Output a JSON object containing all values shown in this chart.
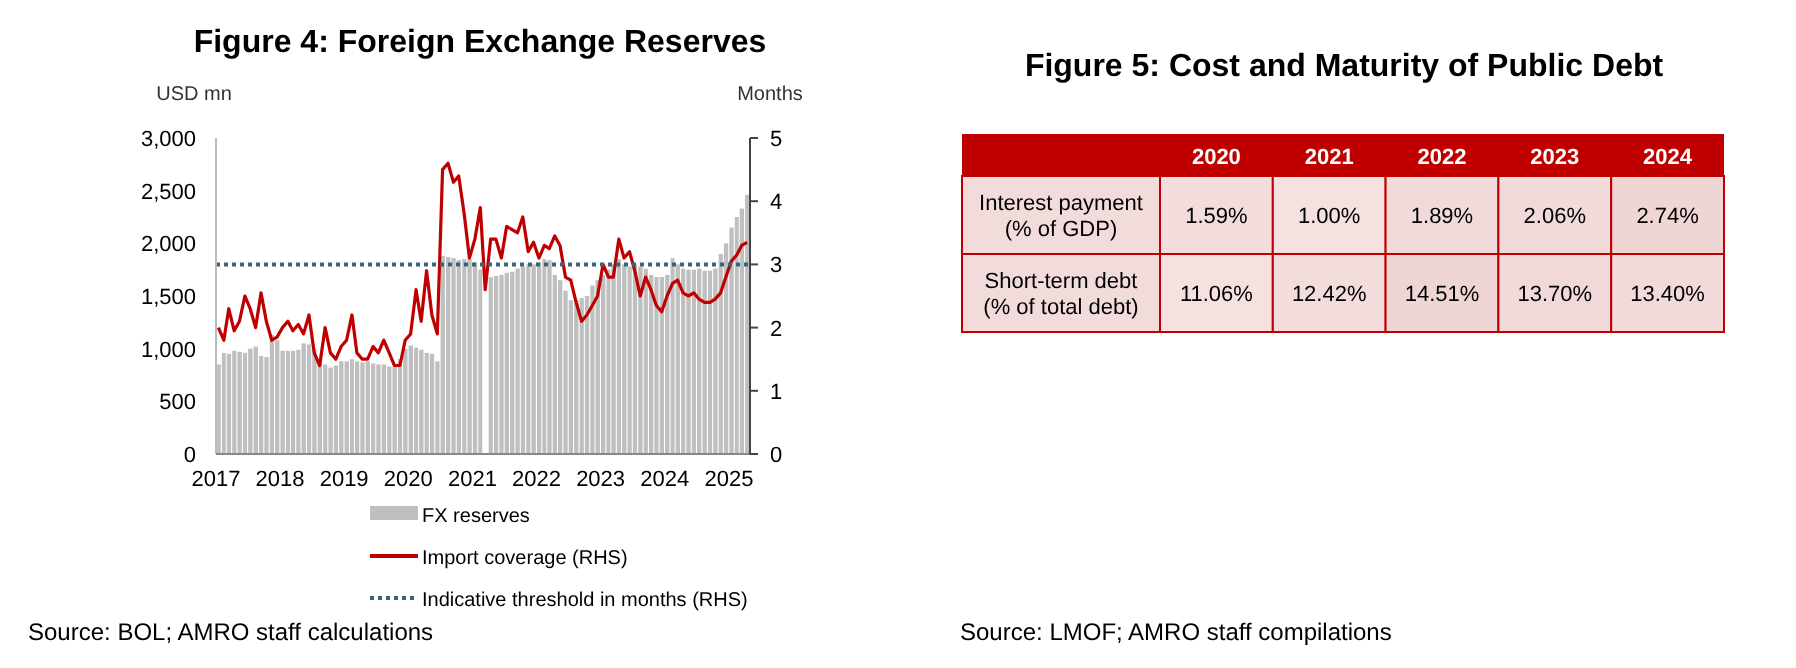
{
  "chart_data": [
    {
      "type": "bar",
      "title": "Figure 4: Foreign Exchange Reserves",
      "ylabel": "USD mn",
      "y2label": "Months",
      "x": [
        "2017-01",
        "2017-02",
        "2017-03",
        "2017-04",
        "2017-05",
        "2017-06",
        "2017-07",
        "2017-08",
        "2017-09",
        "2017-10",
        "2017-11",
        "2017-12",
        "2018-01",
        "2018-02",
        "2018-03",
        "2018-04",
        "2018-05",
        "2018-06",
        "2018-07",
        "2018-08",
        "2018-09",
        "2018-10",
        "2018-11",
        "2018-12",
        "2019-01",
        "2019-02",
        "2019-03",
        "2019-04",
        "2019-05",
        "2019-06",
        "2019-07",
        "2019-08",
        "2019-09",
        "2019-10",
        "2019-11",
        "2019-12",
        "2020-01",
        "2020-02",
        "2020-03",
        "2020-04",
        "2020-05",
        "2020-06",
        "2020-07",
        "2020-08",
        "2020-09",
        "2020-10",
        "2020-11",
        "2020-12",
        "2021-01",
        "2021-02",
        "2021-03",
        "2021-04",
        "2021-05",
        "2021-06",
        "2021-07",
        "2021-08",
        "2021-09",
        "2021-10",
        "2021-11",
        "2021-12",
        "2022-01",
        "2022-02",
        "2022-03",
        "2022-04",
        "2022-05",
        "2022-06",
        "2022-07",
        "2022-08",
        "2022-09",
        "2022-10",
        "2022-11",
        "2022-12",
        "2023-01",
        "2023-02",
        "2023-03",
        "2023-04",
        "2023-05",
        "2023-06",
        "2023-07",
        "2023-08",
        "2023-09",
        "2023-10",
        "2023-11",
        "2023-12",
        "2024-01",
        "2024-02",
        "2024-03",
        "2024-04",
        "2024-05",
        "2024-06",
        "2024-07",
        "2024-08",
        "2024-09",
        "2024-10",
        "2024-11",
        "2024-12",
        "2025-01",
        "2025-02",
        "2025-03",
        "2025-04"
      ],
      "series": [
        {
          "name": "FX reserves",
          "type": "bar",
          "color": "#bfbfbf",
          "values": [
            850,
            960,
            950,
            980,
            970,
            960,
            1000,
            1020,
            930,
            920,
            1130,
            1080,
            980,
            980,
            980,
            990,
            1050,
            1040,
            1000,
            900,
            850,
            820,
            840,
            880,
            880,
            900,
            880,
            870,
            880,
            860,
            850,
            850,
            830,
            830,
            900,
            1000,
            1030,
            1010,
            990,
            960,
            950,
            880,
            1880,
            1870,
            1860,
            1840,
            1850,
            1850,
            1820,
            1750,
            null,
            1680,
            1690,
            1700,
            1720,
            1730,
            1760,
            1780,
            1800,
            1800,
            1820,
            1850,
            1840,
            1700,
            1650,
            1550,
            1460,
            1460,
            1480,
            1500,
            1600,
            1650,
            1700,
            1750,
            1800,
            1850,
            1800,
            1780,
            1800,
            1780,
            1760,
            1700,
            1680,
            1680,
            1700,
            1860,
            1800,
            1760,
            1750,
            1750,
            1760,
            1740,
            1740,
            1760,
            1900,
            2000,
            2150,
            2250,
            2330,
            2460
          ]
        },
        {
          "name": "Import coverage  (RHS)",
          "type": "line",
          "axis": "y2",
          "color": "#c00000",
          "values": [
            2.0,
            1.8,
            2.3,
            1.95,
            2.1,
            2.5,
            2.3,
            2.0,
            2.55,
            2.1,
            1.8,
            1.85,
            2.0,
            2.1,
            1.95,
            2.05,
            1.9,
            2.2,
            1.6,
            1.4,
            2.0,
            1.6,
            1.5,
            1.7,
            1.8,
            2.2,
            1.6,
            1.5,
            1.5,
            1.7,
            1.6,
            1.8,
            1.6,
            1.4,
            1.4,
            1.8,
            1.9,
            2.6,
            2.1,
            2.9,
            2.2,
            1.9,
            4.5,
            4.6,
            4.3,
            4.4,
            3.8,
            3.1,
            3.4,
            3.9,
            2.6,
            3.4,
            3.4,
            3.1,
            3.6,
            3.55,
            3.5,
            3.75,
            3.2,
            3.35,
            3.1,
            3.3,
            3.25,
            3.45,
            3.3,
            2.8,
            2.75,
            2.4,
            2.1,
            2.2,
            2.35,
            2.5,
            3.0,
            2.8,
            2.8,
            3.4,
            3.1,
            3.2,
            2.9,
            2.5,
            2.8,
            2.6,
            2.35,
            2.25,
            2.5,
            2.7,
            2.75,
            2.55,
            2.5,
            2.55,
            2.45,
            2.4,
            2.4,
            2.45,
            2.55,
            2.8,
            3.05,
            3.15,
            3.3,
            3.35
          ]
        }
      ],
      "xlim": [
        "2017-01",
        "2025-05"
      ],
      "xticks": [
        "2017",
        "2018",
        "2019",
        "2020",
        "2021",
        "2022",
        "2023",
        "2024",
        "2025"
      ],
      "ylim": [
        0,
        3000
      ],
      "yticks": [
        0,
        500,
        {
          "value": 1000,
          "label": "1,000"
        },
        {
          "value": 1500,
          "label": "1,500"
        },
        {
          "value": 2000,
          "label": "2,000"
        },
        {
          "value": 2500,
          "label": "2,500"
        },
        {
          "value": 3000,
          "label": "3,000"
        }
      ],
      "y2lim": [
        0,
        5
      ],
      "y2ticks": [
        0,
        1,
        2,
        3,
        4,
        5
      ],
      "ref_lines": [
        {
          "axis": "y2",
          "value": 3,
          "label": "Indicative threshold in months (RHS)",
          "color": "#3a6478",
          "line_style": "dotted"
        }
      ],
      "legend": "bottom",
      "annotations": [
        "Source: BOL; AMRO staff calculations"
      ]
    },
    {
      "type": "heatmap",
      "title": "Figure 5: Cost and Maturity of Public Debt",
      "categories": [
        "2020",
        "2021",
        "2022",
        "2023",
        "2024"
      ],
      "y_categories": [
        "Interest payment (% of GDP)",
        "Short-term debt (% of total debt)"
      ],
      "cells": [
        [
          1.59,
          1.0,
          1.89,
          2.06,
          2.74
        ],
        [
          11.06,
          12.42,
          14.51,
          13.7,
          13.4
        ]
      ],
      "cell_labels": [
        [
          "1.59%",
          "1.00%",
          "1.89%",
          "2.06%",
          "2.74%"
        ],
        [
          "11.06%",
          "12.42%",
          "14.51%",
          "13.70%",
          "13.40%"
        ]
      ],
      "annotations": [
        "Source: LMOF; AMRO staff compilations"
      ]
    }
  ]
}
